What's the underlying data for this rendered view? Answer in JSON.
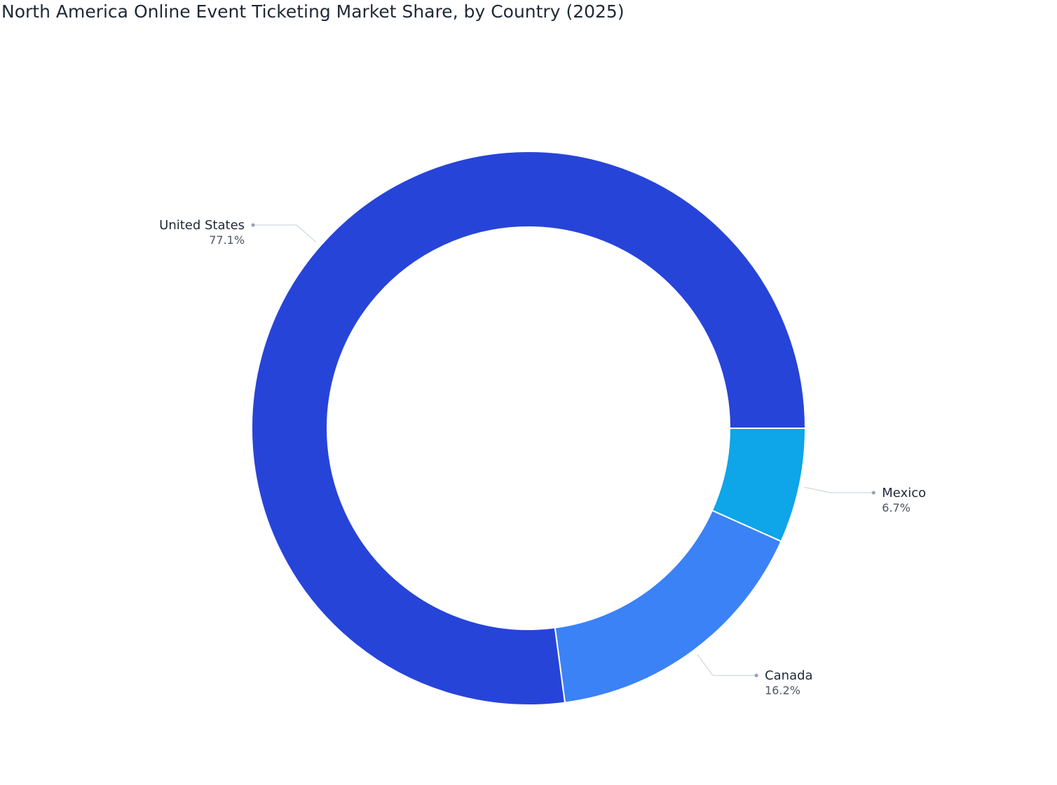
{
  "chart_data": {
    "type": "pie",
    "variant": "donut",
    "title": "North America Online Event Ticketing Market Share, by Country (2025)",
    "slices": [
      {
        "label": "Mexico",
        "value": 6.7,
        "display": "6.7%",
        "color": "#0ea5e9"
      },
      {
        "label": "Canada",
        "value": 16.2,
        "display": "16.2%",
        "color": "#3b82f6"
      },
      {
        "label": "United States",
        "value": 77.1,
        "display": "77.1%",
        "color": "#2744d9"
      }
    ],
    "start_angle": "3 o'clock",
    "direction": "clockwise",
    "legend": "none",
    "label_style": "outside with leader lines"
  }
}
